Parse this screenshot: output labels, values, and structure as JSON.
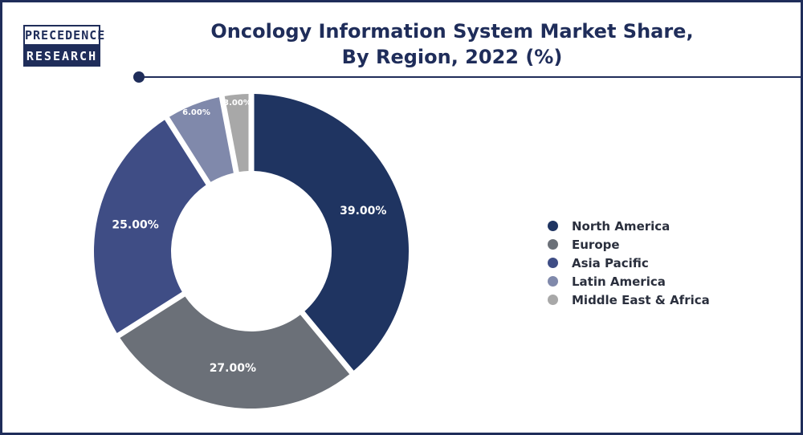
{
  "brand": {
    "logo_top": "PRECEDENCE",
    "logo_bottom": "RESEARCH"
  },
  "chart_data": {
    "type": "pie",
    "title_lines": [
      "Oncology Information System Market Share,",
      "By Region, 2022 (%)"
    ],
    "categories": [
      "North America",
      "Europe",
      "Asia Pacific",
      "Latin America",
      "Middle East & Africa"
    ],
    "values": [
      39,
      27,
      25,
      6,
      3
    ],
    "data_labels": [
      "39.00%",
      "27.00%",
      "25.00%",
      "6.00%",
      "3.00%"
    ],
    "colors": [
      "#1f3461",
      "#6b7078",
      "#3f4d85",
      "#8089ab",
      "#a8a8a8"
    ],
    "donut": true,
    "legend_position": "right"
  }
}
